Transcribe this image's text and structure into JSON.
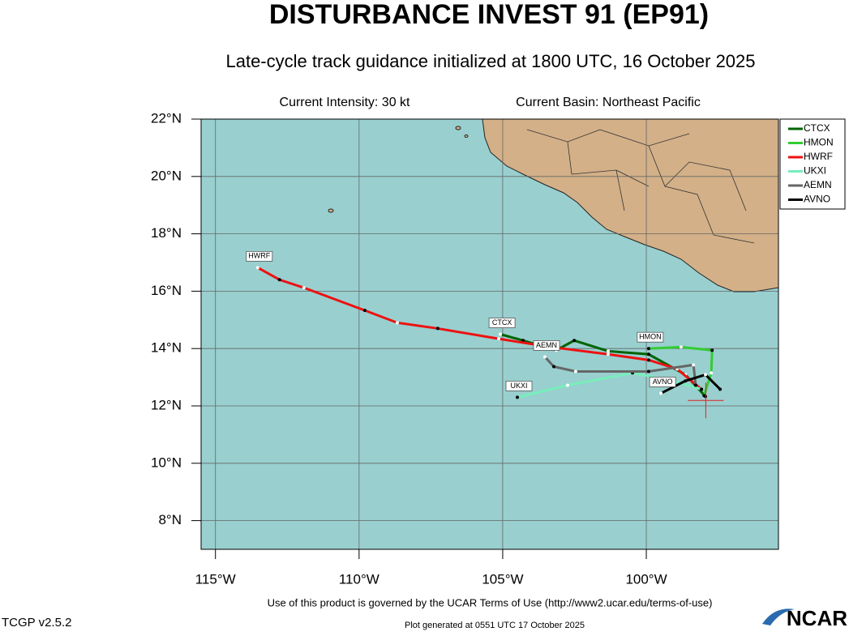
{
  "chart_data": {
    "type": "track-map",
    "title": "DISTURBANCE INVEST 91 (EP91)",
    "subtitle": "Late-cycle track guidance initialized at 1800 UTC, 16 October 2025",
    "intensity": "Current Intensity: 30 kt",
    "basin": "Current Basin: Northeast Pacific",
    "footer": "Use of this product is governed by the UCAR Terms of Use (http://www2.ucar.edu/terms-of-use)",
    "version": "TCGP v2.5.2",
    "generated": "Plot generated at 0551 UTC   17 October 2025",
    "logo": "NCAR",
    "xlim": [
      -115.5,
      -95.4
    ],
    "ylim": [
      7,
      22
    ],
    "xticks": [
      {
        "value": -115,
        "label": "115°W"
      },
      {
        "value": -110,
        "label": "110°W"
      },
      {
        "value": -105,
        "label": "105°W"
      },
      {
        "value": -100,
        "label": "100°W"
      }
    ],
    "yticks": [
      {
        "value": 22,
        "label": "22°N"
      },
      {
        "value": 20,
        "label": "20°N"
      },
      {
        "value": 18,
        "label": "18°N"
      },
      {
        "value": 16,
        "label": "16°N"
      },
      {
        "value": 14,
        "label": "14°N"
      },
      {
        "value": 12,
        "label": "12°N"
      },
      {
        "value": 10,
        "label": "10°N"
      },
      {
        "value": 8,
        "label": "8°N"
      }
    ],
    "grid": true,
    "legend": "outside-right",
    "current_position": {
      "lon": -97.93,
      "lat": 12.19
    },
    "series": [
      {
        "name": "CTCX",
        "color": "#006400",
        "lon": [
          -97.94,
          -98.64,
          -99.92,
          -101.33,
          -102.51,
          -103.14,
          -104.29,
          -105.08
        ],
        "lat": [
          12.33,
          13.09,
          13.8,
          13.91,
          14.28,
          13.94,
          14.28,
          14.5
        ]
      },
      {
        "name": "HMON",
        "color": "#33cc33",
        "lon": [
          -97.99,
          -97.74,
          -97.71,
          -98.79,
          -99.92
        ],
        "lat": [
          12.36,
          13.15,
          13.94,
          14.05,
          14.0
        ]
      },
      {
        "name": "HWRF",
        "color": "#ee1111",
        "lon": [
          -98.08,
          -98.93,
          -99.92,
          -101.33,
          -103.31,
          -105.14,
          -107.26,
          -108.67,
          -109.8,
          -111.92,
          -112.77,
          -113.53
        ],
        "lat": [
          12.58,
          13.29,
          13.6,
          13.8,
          14.05,
          14.34,
          14.7,
          14.9,
          15.33,
          16.12,
          16.4,
          16.82
        ]
      },
      {
        "name": "UKXI",
        "color": "#77eebb",
        "lon": [
          -98.08,
          -99.07,
          -100.48,
          -102.74,
          -104.49
        ],
        "lat": [
          12.58,
          12.87,
          13.15,
          12.72,
          12.3
        ]
      },
      {
        "name": "AEMN",
        "color": "#666666",
        "lon": [
          -98.28,
          -98.36,
          -99.92,
          -102.46,
          -103.22,
          -103.53
        ],
        "lat": [
          12.72,
          13.43,
          13.2,
          13.2,
          13.37,
          13.71
        ]
      },
      {
        "name": "AVNO",
        "color": "#000000",
        "lon": [
          -97.43,
          -97.94,
          -98.64,
          -99.49
        ],
        "lat": [
          12.58,
          13.09,
          12.87,
          12.44
        ]
      }
    ]
  }
}
